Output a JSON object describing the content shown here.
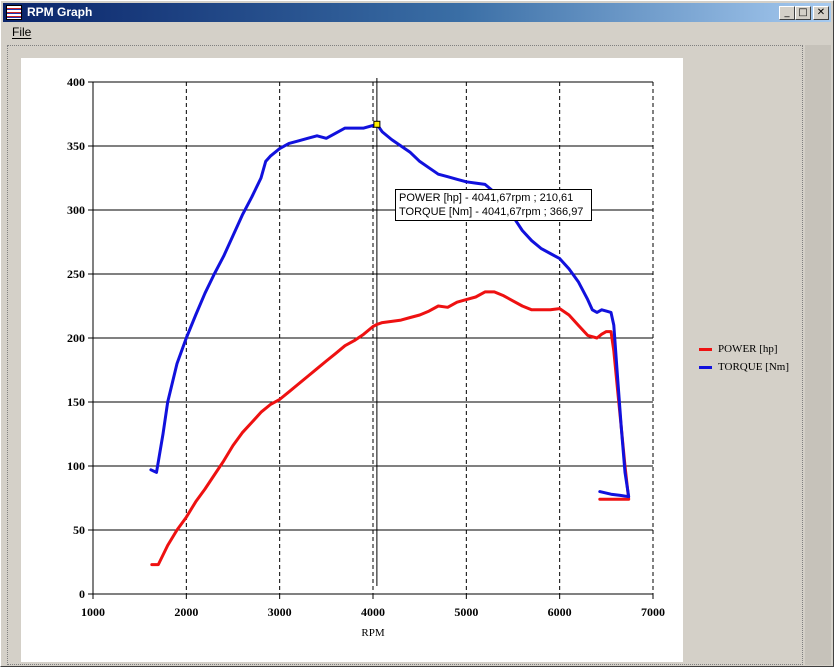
{
  "window": {
    "title": "RPM Graph",
    "controls": {
      "minimize": "_",
      "maximize": "□",
      "close": "✕"
    }
  },
  "menu": {
    "file": "File"
  },
  "tooltip": {
    "line1": "POWER [hp] - 4041,67rpm ; 210,61",
    "line2": "TORQUE [Nm] - 4041,67rpm ; 366,97"
  },
  "chart_data": {
    "type": "line",
    "xlabel": "RPM",
    "ylabel": "",
    "title": "",
    "xlim": [
      1000,
      7000
    ],
    "ylim": [
      0,
      400
    ],
    "x_ticks": [
      1000,
      2000,
      3000,
      4000,
      5000,
      6000,
      7000
    ],
    "y_ticks": [
      0,
      50,
      100,
      150,
      200,
      250,
      300,
      350,
      400
    ],
    "x_tick_labels": [
      "1000",
      "2000",
      "3000",
      "4000",
      "5000",
      "6000",
      "7000"
    ],
    "y_tick_labels": [
      "0",
      "50",
      "100",
      "150",
      "200",
      "250",
      "300",
      "350",
      "400"
    ],
    "grid": {
      "horizontal": "solid",
      "vertical": "dashed"
    },
    "legend_position": "right",
    "cursor_x": 4041.67,
    "series": [
      {
        "name": "POWER [hp]",
        "color": "#ee1111",
        "points": [
          [
            1630,
            23
          ],
          [
            1700,
            23
          ],
          [
            1800,
            38
          ],
          [
            1900,
            50
          ],
          [
            2000,
            60
          ],
          [
            2100,
            72
          ],
          [
            2200,
            82
          ],
          [
            2300,
            93
          ],
          [
            2400,
            104
          ],
          [
            2500,
            116
          ],
          [
            2600,
            126
          ],
          [
            2700,
            134
          ],
          [
            2800,
            142
          ],
          [
            2900,
            148
          ],
          [
            3000,
            152
          ],
          [
            3100,
            158
          ],
          [
            3200,
            164
          ],
          [
            3300,
            170
          ],
          [
            3400,
            176
          ],
          [
            3500,
            182
          ],
          [
            3600,
            188
          ],
          [
            3700,
            194
          ],
          [
            3800,
            198
          ],
          [
            3900,
            203
          ],
          [
            4000,
            209
          ],
          [
            4041.67,
            210.61
          ],
          [
            4100,
            212
          ],
          [
            4200,
            213
          ],
          [
            4300,
            214
          ],
          [
            4400,
            216
          ],
          [
            4500,
            218
          ],
          [
            4600,
            221
          ],
          [
            4700,
            225
          ],
          [
            4800,
            224
          ],
          [
            4900,
            228
          ],
          [
            5000,
            230
          ],
          [
            5100,
            232
          ],
          [
            5200,
            236
          ],
          [
            5300,
            236
          ],
          [
            5400,
            233
          ],
          [
            5500,
            229
          ],
          [
            5600,
            225
          ],
          [
            5700,
            222
          ],
          [
            5800,
            222
          ],
          [
            5900,
            222
          ],
          [
            6000,
            223
          ],
          [
            6100,
            218
          ],
          [
            6200,
            210
          ],
          [
            6300,
            202
          ],
          [
            6400,
            200
          ],
          [
            6450,
            203
          ],
          [
            6500,
            205
          ],
          [
            6550,
            205
          ],
          [
            6580,
            190
          ],
          [
            6620,
            160
          ],
          [
            6660,
            130
          ],
          [
            6700,
            100
          ],
          [
            6740,
            74
          ],
          [
            6600,
            74
          ],
          [
            6430,
            74
          ]
        ]
      },
      {
        "name": "TORQUE [Nm]",
        "color": "#1111dd",
        "points": [
          [
            1620,
            97
          ],
          [
            1680,
            95
          ],
          [
            1750,
            125
          ],
          [
            1800,
            150
          ],
          [
            1900,
            180
          ],
          [
            2000,
            200
          ],
          [
            2100,
            218
          ],
          [
            2200,
            235
          ],
          [
            2300,
            250
          ],
          [
            2400,
            264
          ],
          [
            2500,
            280
          ],
          [
            2600,
            296
          ],
          [
            2700,
            310
          ],
          [
            2800,
            325
          ],
          [
            2850,
            338
          ],
          [
            2900,
            342
          ],
          [
            3000,
            348
          ],
          [
            3100,
            352
          ],
          [
            3200,
            354
          ],
          [
            3300,
            356
          ],
          [
            3400,
            358
          ],
          [
            3500,
            356
          ],
          [
            3600,
            360
          ],
          [
            3700,
            364
          ],
          [
            3800,
            364
          ],
          [
            3900,
            364
          ],
          [
            4000,
            366
          ],
          [
            4041.67,
            366.97
          ],
          [
            4100,
            361
          ],
          [
            4200,
            355
          ],
          [
            4300,
            350
          ],
          [
            4400,
            345
          ],
          [
            4500,
            338
          ],
          [
            4600,
            333
          ],
          [
            4700,
            328
          ],
          [
            4800,
            326
          ],
          [
            4900,
            324
          ],
          [
            5000,
            322
          ],
          [
            5100,
            321
          ],
          [
            5200,
            320
          ],
          [
            5300,
            314
          ],
          [
            5400,
            305
          ],
          [
            5500,
            295
          ],
          [
            5600,
            284
          ],
          [
            5700,
            276
          ],
          [
            5800,
            270
          ],
          [
            5900,
            266
          ],
          [
            6000,
            262
          ],
          [
            6100,
            254
          ],
          [
            6200,
            244
          ],
          [
            6300,
            230
          ],
          [
            6350,
            222
          ],
          [
            6400,
            220
          ],
          [
            6450,
            222
          ],
          [
            6500,
            221
          ],
          [
            6550,
            220
          ],
          [
            6580,
            210
          ],
          [
            6620,
            170
          ],
          [
            6660,
            130
          ],
          [
            6700,
            95
          ],
          [
            6740,
            76
          ],
          [
            6650,
            77
          ],
          [
            6550,
            78
          ],
          [
            6430,
            80
          ]
        ]
      }
    ]
  }
}
